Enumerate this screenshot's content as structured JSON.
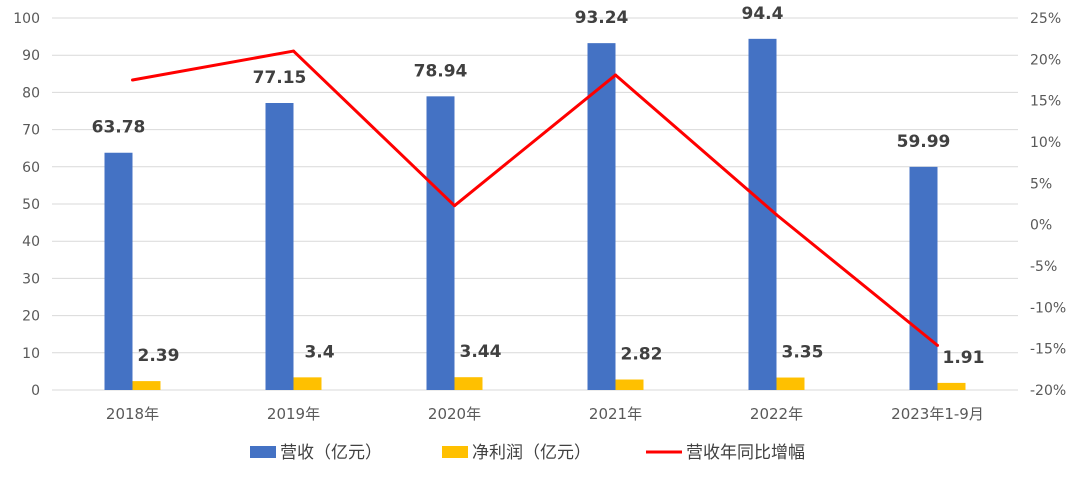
{
  "chart_data": {
    "type": "bar",
    "categories": [
      "2018年",
      "2019年",
      "2020年",
      "2021年",
      "2022年",
      "2023年1-9月"
    ],
    "series": [
      {
        "name": "营收（亿元）",
        "type": "bar",
        "axis": "left",
        "color": "#4472C4",
        "values": [
          63.78,
          77.15,
          78.94,
          93.24,
          94.4,
          59.99
        ],
        "labels": [
          "63.78",
          "77.15",
          "78.94",
          "93.24",
          "94.4",
          "59.99"
        ]
      },
      {
        "name": "净利润（亿元）",
        "type": "bar",
        "axis": "left",
        "color": "#FFC000",
        "values": [
          2.39,
          3.4,
          3.44,
          2.82,
          3.35,
          1.91
        ],
        "labels": [
          "2.39",
          "3.4",
          "3.44",
          "2.82",
          "3.35",
          "1.91"
        ]
      },
      {
        "name": "营收年同比增幅",
        "type": "line",
        "axis": "right",
        "color": "#FF0000",
        "values": [
          17.5,
          21.0,
          2.3,
          18.1,
          1.2,
          -14.6
        ]
      }
    ],
    "y_left": {
      "ylim": [
        0,
        100
      ],
      "ticks": [
        "0",
        "10",
        "20",
        "30",
        "40",
        "50",
        "60",
        "70",
        "80",
        "90",
        "100"
      ]
    },
    "y_right": {
      "ylim": [
        -20,
        25
      ],
      "ticks": [
        "-20%",
        "-15%",
        "-10%",
        "-5%",
        "0%",
        "5%",
        "10%",
        "15%",
        "20%",
        "25%"
      ]
    },
    "grid": true,
    "legend_position": "bottom"
  }
}
